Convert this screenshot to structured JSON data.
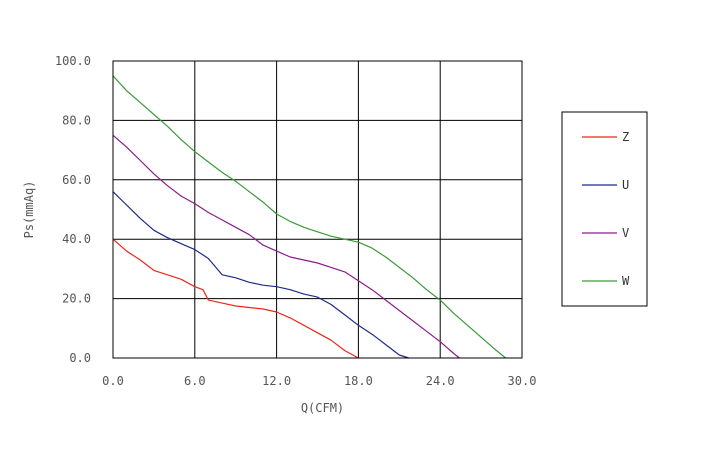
{
  "chart_data": {
    "type": "line",
    "xlabel": "Q(CFM)",
    "ylabel": "Ps(mmAq)",
    "xlim": [
      0,
      30
    ],
    "ylim": [
      0,
      100
    ],
    "x_ticks": [
      "0.0",
      "6.0",
      "12.0",
      "18.0",
      "24.0",
      "30.0"
    ],
    "y_ticks": [
      "0.0",
      "20.0",
      "40.0",
      "60.0",
      "80.0",
      "100.0"
    ],
    "grid": true,
    "legend_position": "right",
    "series": [
      {
        "name": "Z",
        "color": "#e8291c",
        "points": [
          [
            0,
            40
          ],
          [
            1,
            36
          ],
          [
            2,
            33
          ],
          [
            3,
            29.5
          ],
          [
            4,
            28
          ],
          [
            5,
            26.5
          ],
          [
            6,
            24
          ],
          [
            6.6,
            23
          ],
          [
            7,
            19.5
          ],
          [
            8,
            18.5
          ],
          [
            9,
            17.5
          ],
          [
            10,
            17
          ],
          [
            11,
            16.5
          ],
          [
            12,
            15.5
          ],
          [
            13,
            13.5
          ],
          [
            14,
            11
          ],
          [
            15,
            8.5
          ],
          [
            16,
            6
          ],
          [
            17,
            2.5
          ],
          [
            18,
            0
          ]
        ]
      },
      {
        "name": "U",
        "color": "#1c2b8c",
        "points": [
          [
            0,
            56
          ],
          [
            1,
            51.5
          ],
          [
            2,
            47
          ],
          [
            3,
            43
          ],
          [
            4,
            40.5
          ],
          [
            5,
            38.5
          ],
          [
            6,
            36.5
          ],
          [
            7,
            33.5
          ],
          [
            8,
            28
          ],
          [
            9,
            27
          ],
          [
            10,
            25.5
          ],
          [
            11,
            24.5
          ],
          [
            12,
            24
          ],
          [
            13,
            23
          ],
          [
            14,
            21.5
          ],
          [
            15,
            20.5
          ],
          [
            16,
            18
          ],
          [
            17,
            14.5
          ],
          [
            18,
            11
          ],
          [
            19,
            8
          ],
          [
            20,
            4.5
          ],
          [
            21,
            1
          ],
          [
            21.7,
            0
          ]
        ]
      },
      {
        "name": "V",
        "color": "#8a1c8c",
        "points": [
          [
            0,
            75
          ],
          [
            1,
            71
          ],
          [
            2,
            66.5
          ],
          [
            3,
            62
          ],
          [
            4,
            58
          ],
          [
            5,
            54.5
          ],
          [
            6,
            52
          ],
          [
            7,
            49
          ],
          [
            8,
            46.5
          ],
          [
            9,
            44
          ],
          [
            10,
            41.5
          ],
          [
            11,
            38
          ],
          [
            12,
            36
          ],
          [
            13,
            34
          ],
          [
            14,
            33
          ],
          [
            15,
            32
          ],
          [
            16,
            30.5
          ],
          [
            17,
            29
          ],
          [
            18,
            26
          ],
          [
            19,
            23
          ],
          [
            20,
            19.5
          ],
          [
            21,
            16
          ],
          [
            22,
            12.5
          ],
          [
            23,
            9
          ],
          [
            24,
            5.5
          ],
          [
            25,
            1.5
          ],
          [
            25.4,
            0
          ]
        ]
      },
      {
        "name": "W",
        "color": "#3a9a3a",
        "points": [
          [
            0,
            95
          ],
          [
            1,
            90
          ],
          [
            2,
            86
          ],
          [
            3,
            82
          ],
          [
            4,
            78
          ],
          [
            5,
            73.5
          ],
          [
            6,
            69.5
          ],
          [
            7,
            66
          ],
          [
            8,
            62.5
          ],
          [
            9,
            59.5
          ],
          [
            10,
            56
          ],
          [
            11,
            52.5
          ],
          [
            12,
            48.5
          ],
          [
            13,
            46
          ],
          [
            14,
            44
          ],
          [
            15,
            42.5
          ],
          [
            16,
            41
          ],
          [
            17,
            40
          ],
          [
            18,
            39
          ],
          [
            19,
            37
          ],
          [
            20,
            34
          ],
          [
            21,
            30.5
          ],
          [
            22,
            27
          ],
          [
            23,
            23
          ],
          [
            24,
            19.5
          ],
          [
            25,
            15
          ],
          [
            26,
            11
          ],
          [
            27,
            7
          ],
          [
            28,
            3
          ],
          [
            28.8,
            0
          ]
        ]
      }
    ]
  }
}
